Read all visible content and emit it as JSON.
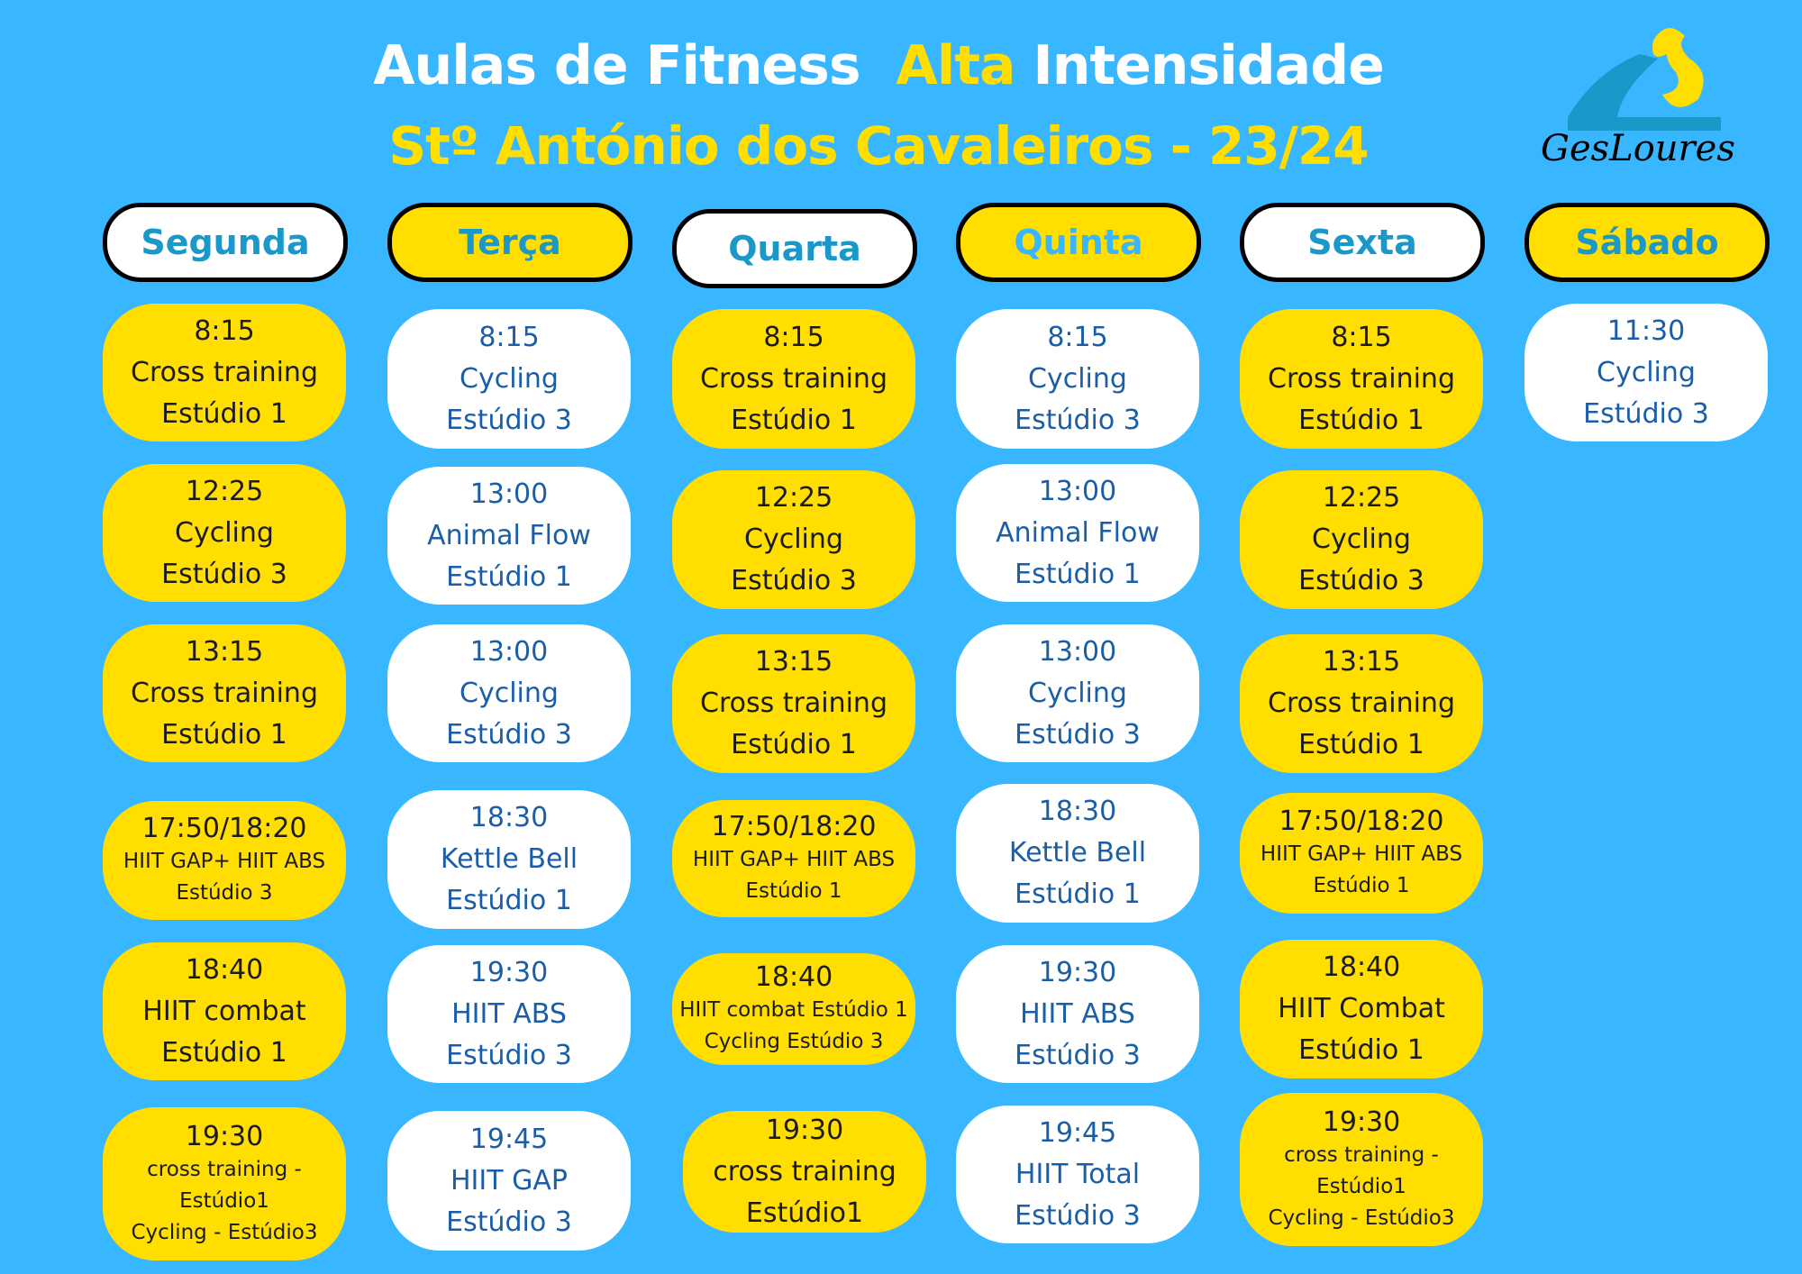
{
  "header": {
    "title_part1": "Aulas de Fitness",
    "title_highlight": "Alta",
    "title_part2": "Intensidade",
    "subtitle": "Stº António dos Cavaleiros - 23/24",
    "logo_text": "GesLoures",
    "logo_icon": "gesloures-logo-icon"
  },
  "colors": {
    "background": "#38b6ff",
    "yellow": "#ffde00",
    "white": "#ffffff",
    "day_text": "#1a98c9",
    "white_card_text": "#1a5ea8",
    "yellow_card_text": "#1b1b1b"
  },
  "days": [
    {
      "name": "Segunda",
      "style": "white",
      "classes": [
        {
          "lines": [
            "8:15",
            "Cross training",
            "Estúdio 1"
          ],
          "style": "yellow"
        },
        {
          "lines": [
            "12:25",
            "Cycling",
            "Estúdio 3"
          ],
          "style": "yellow"
        },
        {
          "lines": [
            "13:15",
            "Cross training",
            "Estúdio 1"
          ],
          "style": "yellow"
        },
        {
          "lines": [
            "17:50/18:20",
            "HIIT GAP+ HIIT ABS",
            "Estúdio 3"
          ],
          "style": "yellow"
        },
        {
          "lines": [
            "18:40",
            "HIIT combat",
            "Estúdio 1"
          ],
          "style": "yellow"
        },
        {
          "lines": [
            "19:30",
            "cross training -",
            "Estúdio1",
            "Cycling - Estúdio3"
          ],
          "style": "yellow"
        }
      ]
    },
    {
      "name": "Terça",
      "style": "yellow",
      "classes": [
        {
          "lines": [
            "8:15",
            "Cycling",
            "Estúdio 3"
          ],
          "style": "white"
        },
        {
          "lines": [
            "13:00",
            "Animal Flow",
            "Estúdio 1"
          ],
          "style": "white"
        },
        {
          "lines": [
            "13:00",
            "Cycling",
            "Estúdio 3"
          ],
          "style": "white"
        },
        {
          "lines": [
            "18:30",
            "Kettle Bell",
            "Estúdio 1"
          ],
          "style": "white"
        },
        {
          "lines": [
            "19:30",
            "HIIT ABS",
            "Estúdio 3"
          ],
          "style": "white"
        },
        {
          "lines": [
            "19:45",
            "HIIT GAP",
            "Estúdio 3"
          ],
          "style": "white"
        }
      ]
    },
    {
      "name": "Quarta",
      "style": "white",
      "classes": [
        {
          "lines": [
            "8:15",
            "Cross training",
            "Estúdio 1"
          ],
          "style": "yellow"
        },
        {
          "lines": [
            "12:25",
            "Cycling",
            "Estúdio 3"
          ],
          "style": "yellow"
        },
        {
          "lines": [
            "13:15",
            "Cross training",
            "Estúdio 1"
          ],
          "style": "yellow"
        },
        {
          "lines": [
            "17:50/18:20",
            "HIIT GAP+ HIIT ABS",
            "Estúdio 1"
          ],
          "style": "yellow"
        },
        {
          "lines": [
            "18:40",
            "HIIT combat Estúdio 1",
            "Cycling  Estúdio 3"
          ],
          "style": "yellow"
        },
        {
          "lines": [
            "19:30",
            "cross training",
            "Estúdio1"
          ],
          "style": "yellow"
        }
      ]
    },
    {
      "name": "Quinta",
      "style": "yellow-bright",
      "classes": [
        {
          "lines": [
            "8:15",
            "Cycling",
            "Estúdio 3"
          ],
          "style": "white"
        },
        {
          "lines": [
            "13:00",
            "Animal Flow",
            "Estúdio 1"
          ],
          "style": "white"
        },
        {
          "lines": [
            "13:00",
            "Cycling",
            "Estúdio 3"
          ],
          "style": "white"
        },
        {
          "lines": [
            "18:30",
            "Kettle Bell",
            "Estúdio 1"
          ],
          "style": "white"
        },
        {
          "lines": [
            "19:30",
            "HIIT ABS",
            "Estúdio 3"
          ],
          "style": "white"
        },
        {
          "lines": [
            "19:45",
            "HIIT Total",
            "Estúdio 3"
          ],
          "style": "white"
        }
      ]
    },
    {
      "name": "Sexta",
      "style": "white",
      "classes": [
        {
          "lines": [
            "8:15",
            "Cross training",
            "Estúdio 1"
          ],
          "style": "yellow"
        },
        {
          "lines": [
            "12:25",
            "Cycling",
            "Estúdio 3"
          ],
          "style": "yellow"
        },
        {
          "lines": [
            "13:15",
            "Cross training",
            "Estúdio 1"
          ],
          "style": "yellow"
        },
        {
          "lines": [
            "17:50/18:20",
            "HIIT GAP+ HIIT ABS",
            "Estúdio 1"
          ],
          "style": "yellow"
        },
        {
          "lines": [
            "18:40",
            "HIIT Combat",
            "Estúdio 1"
          ],
          "style": "yellow"
        },
        {
          "lines": [
            "19:30",
            "cross training -",
            "Estúdio1",
            "Cycling - Estúdio3"
          ],
          "style": "yellow"
        }
      ]
    },
    {
      "name": "Sábado",
      "style": "yellow",
      "classes": [
        {
          "lines": [
            "11:30",
            "Cycling",
            "Estúdio 3"
          ],
          "style": "white"
        }
      ]
    }
  ]
}
